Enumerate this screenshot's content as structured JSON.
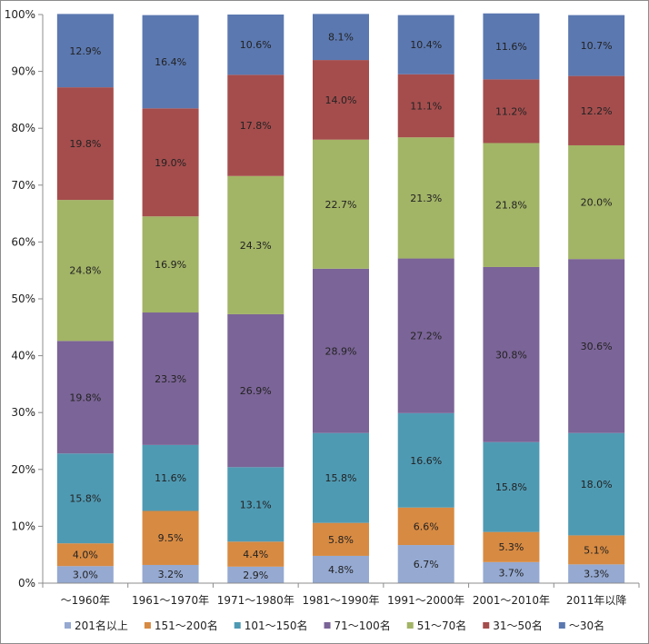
{
  "chart_data": {
    "type": "bar",
    "stacked": true,
    "percent": true,
    "categories": [
      "～1960年",
      "1961～1970年",
      "1971～1980年",
      "1981～1990年",
      "1991～2000年",
      "2001～2010年",
      "2011年以降"
    ],
    "series": [
      {
        "name": "201名以上",
        "color": "#95a9d1",
        "values": [
          3.0,
          3.2,
          2.9,
          4.8,
          6.7,
          3.7,
          3.3
        ],
        "labels": [
          "3.0%",
          "3.2%",
          "2.9%",
          "4.8%",
          "6.7%",
          "3.7%",
          "3.3%"
        ]
      },
      {
        "name": "151～200名",
        "color": "#d78a42",
        "values": [
          4.0,
          9.5,
          4.4,
          5.8,
          6.6,
          5.3,
          5.1
        ],
        "labels": [
          "4.0%",
          "9.5%",
          "4.4%",
          "5.8%",
          "6.6%",
          "5.3%",
          "5.1%"
        ]
      },
      {
        "name": "101～150名",
        "color": "#4f9ab3",
        "values": [
          15.8,
          11.6,
          13.1,
          15.8,
          16.6,
          15.8,
          18.0
        ],
        "labels": [
          "15.8%",
          "11.6%",
          "13.1%",
          "15.8%",
          "16.6%",
          "15.8%",
          "18.0%"
        ]
      },
      {
        "name": "71～100名",
        "color": "#7b6497",
        "values": [
          19.8,
          23.3,
          26.9,
          28.9,
          27.2,
          30.8,
          30.6
        ],
        "labels": [
          "19.8%",
          "23.3%",
          "26.9%",
          "28.9%",
          "27.2%",
          "30.8%",
          "30.6%"
        ]
      },
      {
        "name": "51～70名",
        "color": "#a2b466",
        "values": [
          24.8,
          16.9,
          24.3,
          22.7,
          21.3,
          21.8,
          20.0
        ],
        "labels": [
          "24.8%",
          "16.9%",
          "24.3%",
          "22.7%",
          "21.3%",
          "21.8%",
          "20.0%"
        ]
      },
      {
        "name": "31～50名",
        "color": "#a54d4d",
        "values": [
          19.8,
          19.0,
          17.8,
          14.0,
          11.1,
          11.2,
          12.2
        ],
        "labels": [
          "19.8%",
          "19.0%",
          "17.8%",
          "14.0%",
          "11.1%",
          "11.2%",
          "12.2%"
        ]
      },
      {
        "name": "～30名",
        "color": "#5b78b0",
        "values": [
          12.9,
          16.4,
          10.6,
          8.1,
          10.4,
          11.6,
          10.7
        ],
        "labels": [
          "12.9%",
          "16.4%",
          "10.6%",
          "8.1%",
          "10.4%",
          "11.6%",
          "10.7%"
        ]
      }
    ],
    "ylim": [
      0,
      100
    ],
    "yticks": [
      "0%",
      "10%",
      "20%",
      "30%",
      "40%",
      "50%",
      "60%",
      "70%",
      "80%",
      "90%",
      "100%"
    ],
    "legend_position": "bottom",
    "grid": false
  }
}
